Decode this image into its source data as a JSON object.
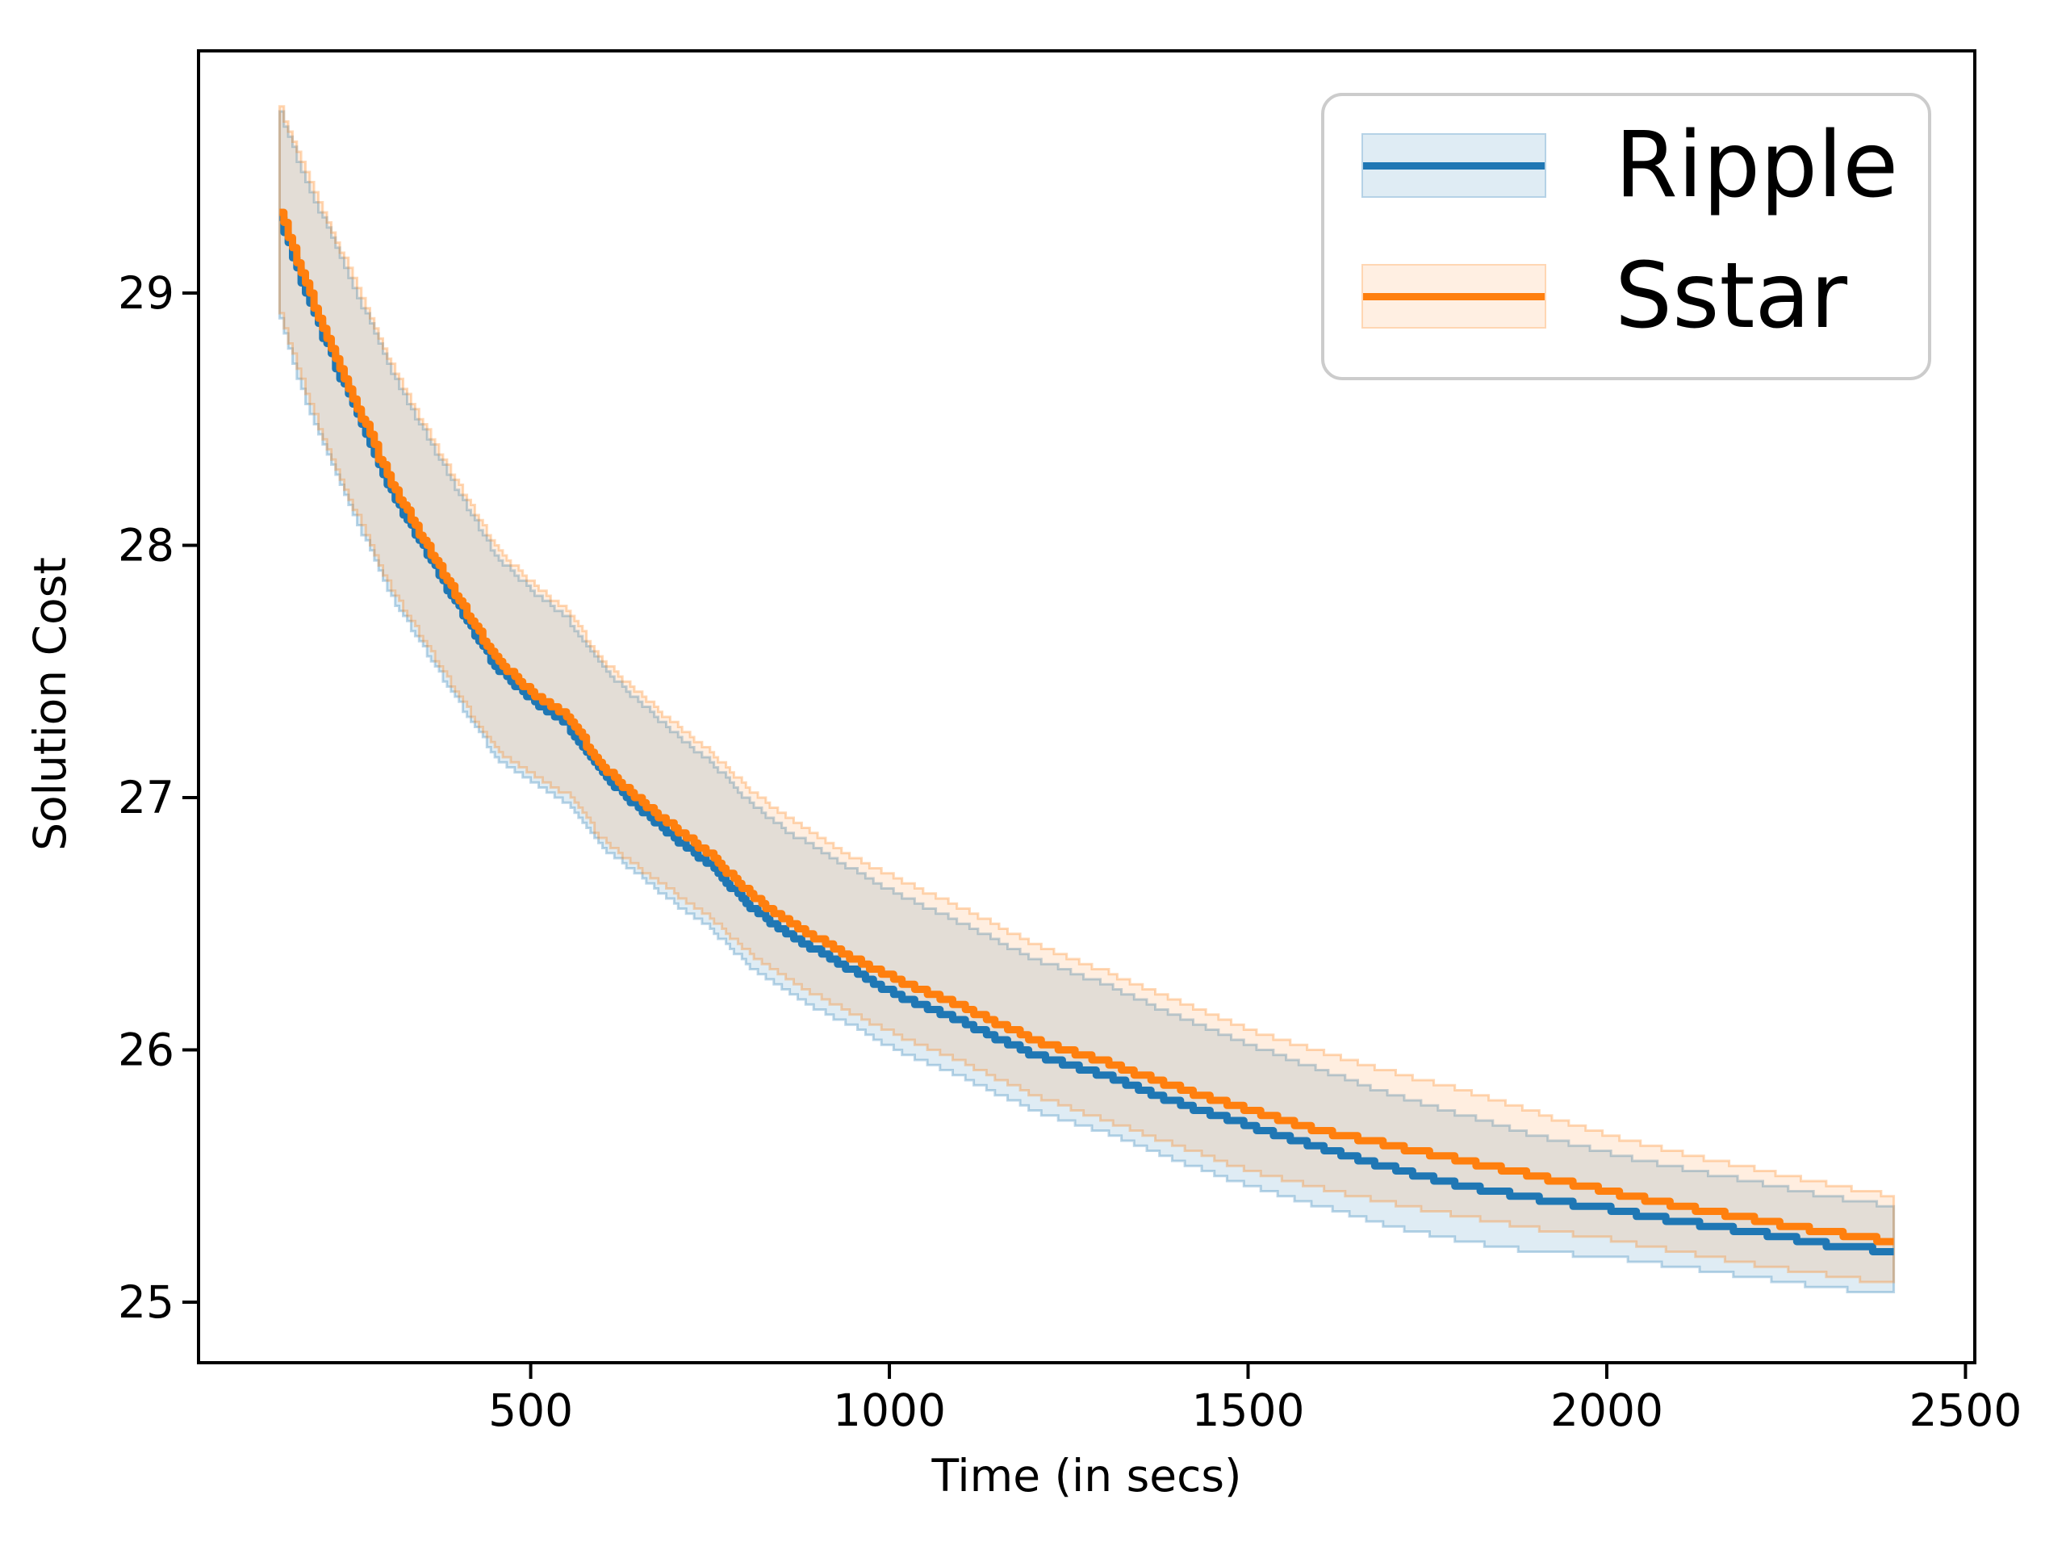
{
  "axes": {
    "xlabel": "Time (in secs)",
    "ylabel": "Solution Cost",
    "xticks": [
      "500",
      "1000",
      "1500",
      "2000",
      "2500"
    ],
    "yticks": [
      "25",
      "26",
      "27",
      "28",
      "29"
    ]
  },
  "legend": {
    "entries": [
      {
        "label": "Ripple",
        "color": "#1f77b4"
      },
      {
        "label": "Sstar",
        "color": "#ff7f0e"
      }
    ]
  },
  "chart_data": {
    "type": "line",
    "title": "",
    "xlabel": "Time (in secs)",
    "ylabel": "Solution Cost",
    "xlim": [
      37,
      2513
    ],
    "ylim": [
      24.76,
      29.96
    ],
    "xticks": [
      500,
      1000,
      1500,
      2000,
      2500
    ],
    "yticks": [
      25,
      26,
      27,
      28,
      29
    ],
    "grid": false,
    "legend_position": "upper right",
    "band_style": "shaded confidence interval around each line",
    "x": [
      150,
      180,
      210,
      240,
      270,
      300,
      350,
      400,
      450,
      500,
      550,
      600,
      650,
      700,
      750,
      800,
      850,
      900,
      950,
      1000,
      1100,
      1200,
      1300,
      1400,
      1500,
      1600,
      1700,
      1800,
      1900,
      2000,
      2100,
      2200,
      2300,
      2400
    ],
    "series": [
      {
        "name": "Ripple",
        "color": "#1f77b4",
        "band_fill": "rgba(31,119,180,0.14)",
        "band_edge": "rgba(31,119,180,0.30)",
        "values": [
          29.3,
          29.04,
          28.83,
          28.63,
          28.44,
          28.24,
          27.99,
          27.75,
          27.52,
          27.39,
          27.29,
          27.09,
          26.96,
          26.84,
          26.73,
          26.58,
          26.47,
          26.39,
          26.31,
          26.23,
          26.11,
          25.98,
          25.9,
          25.79,
          25.7,
          25.61,
          25.53,
          25.46,
          25.41,
          25.37,
          25.32,
          25.28,
          25.23,
          25.2
        ],
        "band_upper": [
          29.71,
          29.48,
          29.29,
          29.1,
          28.91,
          28.71,
          28.45,
          28.2,
          27.96,
          27.82,
          27.71,
          27.51,
          27.38,
          27.25,
          27.14,
          26.99,
          26.88,
          26.79,
          26.71,
          26.63,
          26.5,
          26.36,
          26.26,
          26.13,
          26.02,
          25.92,
          25.82,
          25.74,
          25.66,
          25.59,
          25.53,
          25.48,
          25.42,
          25.38
        ],
        "band_lower": [
          28.89,
          28.61,
          28.39,
          28.19,
          28.01,
          27.82,
          27.59,
          27.37,
          27.16,
          27.06,
          26.98,
          26.8,
          26.69,
          26.58,
          26.48,
          26.34,
          26.24,
          26.16,
          26.09,
          26.01,
          25.89,
          25.76,
          25.67,
          25.56,
          25.46,
          25.38,
          25.3,
          25.24,
          25.2,
          25.18,
          25.14,
          25.1,
          25.06,
          25.03
        ]
      },
      {
        "name": "Sstar",
        "color": "#ff7f0e",
        "band_fill": "rgba(255,127,14,0.13)",
        "band_edge": "rgba(255,127,14,0.30)",
        "values": [
          29.32,
          29.08,
          28.86,
          28.66,
          28.47,
          28.27,
          28.02,
          27.78,
          27.55,
          27.42,
          27.32,
          27.12,
          26.99,
          26.88,
          26.77,
          26.63,
          26.52,
          26.44,
          26.36,
          26.29,
          26.17,
          26.04,
          25.95,
          25.85,
          25.76,
          25.68,
          25.62,
          25.56,
          25.5,
          25.44,
          25.38,
          25.33,
          25.28,
          25.24
        ],
        "band_upper": [
          29.73,
          29.52,
          29.32,
          29.13,
          28.94,
          28.74,
          28.48,
          28.23,
          27.99,
          27.85,
          27.74,
          27.54,
          27.41,
          27.29,
          27.18,
          27.04,
          26.93,
          26.84,
          26.76,
          26.69,
          26.56,
          26.42,
          26.31,
          26.19,
          26.08,
          25.99,
          25.91,
          25.84,
          25.75,
          25.66,
          25.59,
          25.53,
          25.47,
          25.42
        ],
        "band_lower": [
          28.91,
          28.65,
          28.42,
          28.22,
          28.04,
          27.85,
          27.62,
          27.4,
          27.19,
          27.09,
          27.01,
          26.83,
          26.72,
          26.62,
          26.52,
          26.39,
          26.29,
          26.21,
          26.14,
          26.07,
          25.95,
          25.82,
          25.72,
          25.62,
          25.52,
          25.45,
          25.39,
          25.34,
          25.29,
          25.25,
          25.2,
          25.15,
          25.11,
          25.07
        ]
      }
    ]
  }
}
